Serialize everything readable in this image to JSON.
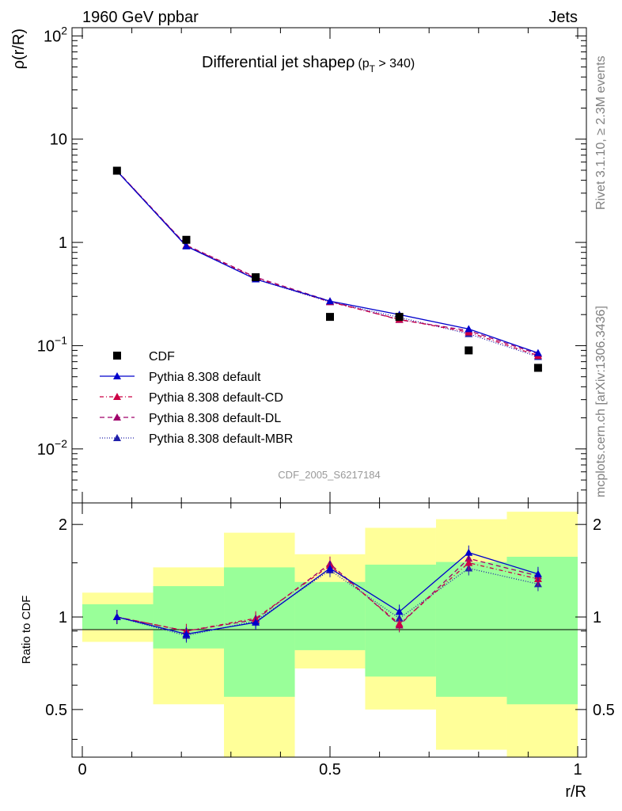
{
  "header": {
    "left": "1960 GeV ppbar",
    "right": "Jets"
  },
  "side_text": {
    "rivet": "Rivet 3.1.10, ≥ 2.3M events",
    "mcplots": "mcplots.cern.ch [arXiv:1306.3436]"
  },
  "colors": {
    "data": "#000000",
    "default": "#0000cc",
    "cd": "#cc0044",
    "dl": "#a0006a",
    "mbr": "#2020aa",
    "band_outer": "#ffff99",
    "band_inner": "#99ff99",
    "watermark": "#999999"
  },
  "chart_data": [
    {
      "type": "line",
      "title": "Differential jet shape",
      "title_symbol": "ρ",
      "title_cut_main": "(p",
      "title_cut_sub": "T",
      "title_cut_end": " > 340)",
      "ylabel": "ρ(r/R)",
      "yscale": "log",
      "ylim": [
        0.003,
        120
      ],
      "xlim": [
        0,
        1
      ],
      "yticks": [
        {
          "value": 0.01,
          "base": "10",
          "exp": "−2"
        },
        {
          "value": 0.1,
          "base": "10",
          "exp": "−1"
        },
        {
          "value": 1,
          "base": "1",
          "exp": ""
        },
        {
          "value": 10,
          "base": "10",
          "exp": ""
        },
        {
          "value": 100,
          "base": "10",
          "exp": "2"
        }
      ],
      "watermark": "CDF_2005_S6217184",
      "x": [
        0.07,
        0.21,
        0.35,
        0.5,
        0.64,
        0.78,
        0.92
      ],
      "series": [
        {
          "name": "CDF",
          "key": "data",
          "marker": "square",
          "values": [
            4.95,
            1.06,
            0.46,
            0.19,
            0.19,
            0.09,
            0.061
          ]
        },
        {
          "name": "Pythia 8.308 default",
          "key": "default",
          "dash": "",
          "marker": "triangle",
          "values": [
            4.9,
            0.92,
            0.44,
            0.27,
            0.2,
            0.145,
            0.085
          ]
        },
        {
          "name": "Pythia 8.308 default-CD",
          "key": "cd",
          "dash": "5,3,1,3",
          "marker": "triangle",
          "values": [
            4.95,
            0.93,
            0.45,
            0.265,
            0.18,
            0.135,
            0.08
          ]
        },
        {
          "name": "Pythia 8.308 default-DL",
          "key": "dl",
          "dash": "6,4",
          "marker": "triangle",
          "values": [
            4.95,
            0.94,
            0.46,
            0.27,
            0.178,
            0.14,
            0.083
          ]
        },
        {
          "name": "Pythia 8.308 default-MBR",
          "key": "mbr",
          "dash": "1,2",
          "marker": "triangle",
          "values": [
            4.9,
            0.92,
            0.44,
            0.265,
            0.188,
            0.13,
            0.078
          ]
        }
      ]
    },
    {
      "type": "line",
      "ylabel": "Ratio to CDF",
      "xlabel": "r/R",
      "yscale": "log",
      "ylim": [
        0.35,
        2.35
      ],
      "xlim": [
        0,
        1
      ],
      "yticks": [
        {
          "value": 0.5,
          "label": "0.5"
        },
        {
          "value": 1,
          "label": "1"
        },
        {
          "value": 2,
          "label": "2"
        }
      ],
      "xticks": [
        {
          "value": 0,
          "label": "0"
        },
        {
          "value": 0.5,
          "label": "0.5"
        },
        {
          "value": 1,
          "label": "1"
        }
      ],
      "bins": [
        0,
        0.143,
        0.286,
        0.429,
        0.571,
        0.714,
        0.857,
        1.0
      ],
      "band_outer": [
        [
          0.83,
          1.2
        ],
        [
          0.52,
          1.45
        ],
        [
          0.3,
          1.88
        ],
        [
          0.68,
          1.6
        ],
        [
          0.5,
          1.95
        ],
        [
          0.37,
          2.08
        ],
        [
          0.3,
          2.2
        ]
      ],
      "band_inner": [
        [
          0.91,
          1.1
        ],
        [
          0.79,
          1.26
        ],
        [
          0.55,
          1.45
        ],
        [
          0.78,
          1.3
        ],
        [
          0.64,
          1.48
        ],
        [
          0.55,
          1.51
        ],
        [
          0.52,
          1.57
        ]
      ],
      "x": [
        0.07,
        0.21,
        0.35,
        0.5,
        0.64,
        0.78,
        0.92
      ],
      "series": [
        {
          "name": "Pythia 8.308 default",
          "key": "default",
          "dash": "",
          "values": [
            1.0,
            0.88,
            0.96,
            1.44,
            1.04,
            1.62,
            1.38
          ]
        },
        {
          "name": "Pythia 8.308 default-CD",
          "key": "cd",
          "dash": "5,3,1,3",
          "values": [
            1.0,
            0.9,
            0.99,
            1.47,
            0.95,
            1.5,
            1.33
          ]
        },
        {
          "name": "Pythia 8.308 default-DL",
          "key": "dl",
          "dash": "6,4",
          "values": [
            1.0,
            0.9,
            0.98,
            1.49,
            0.94,
            1.55,
            1.36
          ]
        },
        {
          "name": "Pythia 8.308 default-MBR",
          "key": "mbr",
          "dash": "1,2",
          "values": [
            1.0,
            0.87,
            0.97,
            1.42,
            0.99,
            1.44,
            1.28
          ]
        }
      ]
    }
  ]
}
